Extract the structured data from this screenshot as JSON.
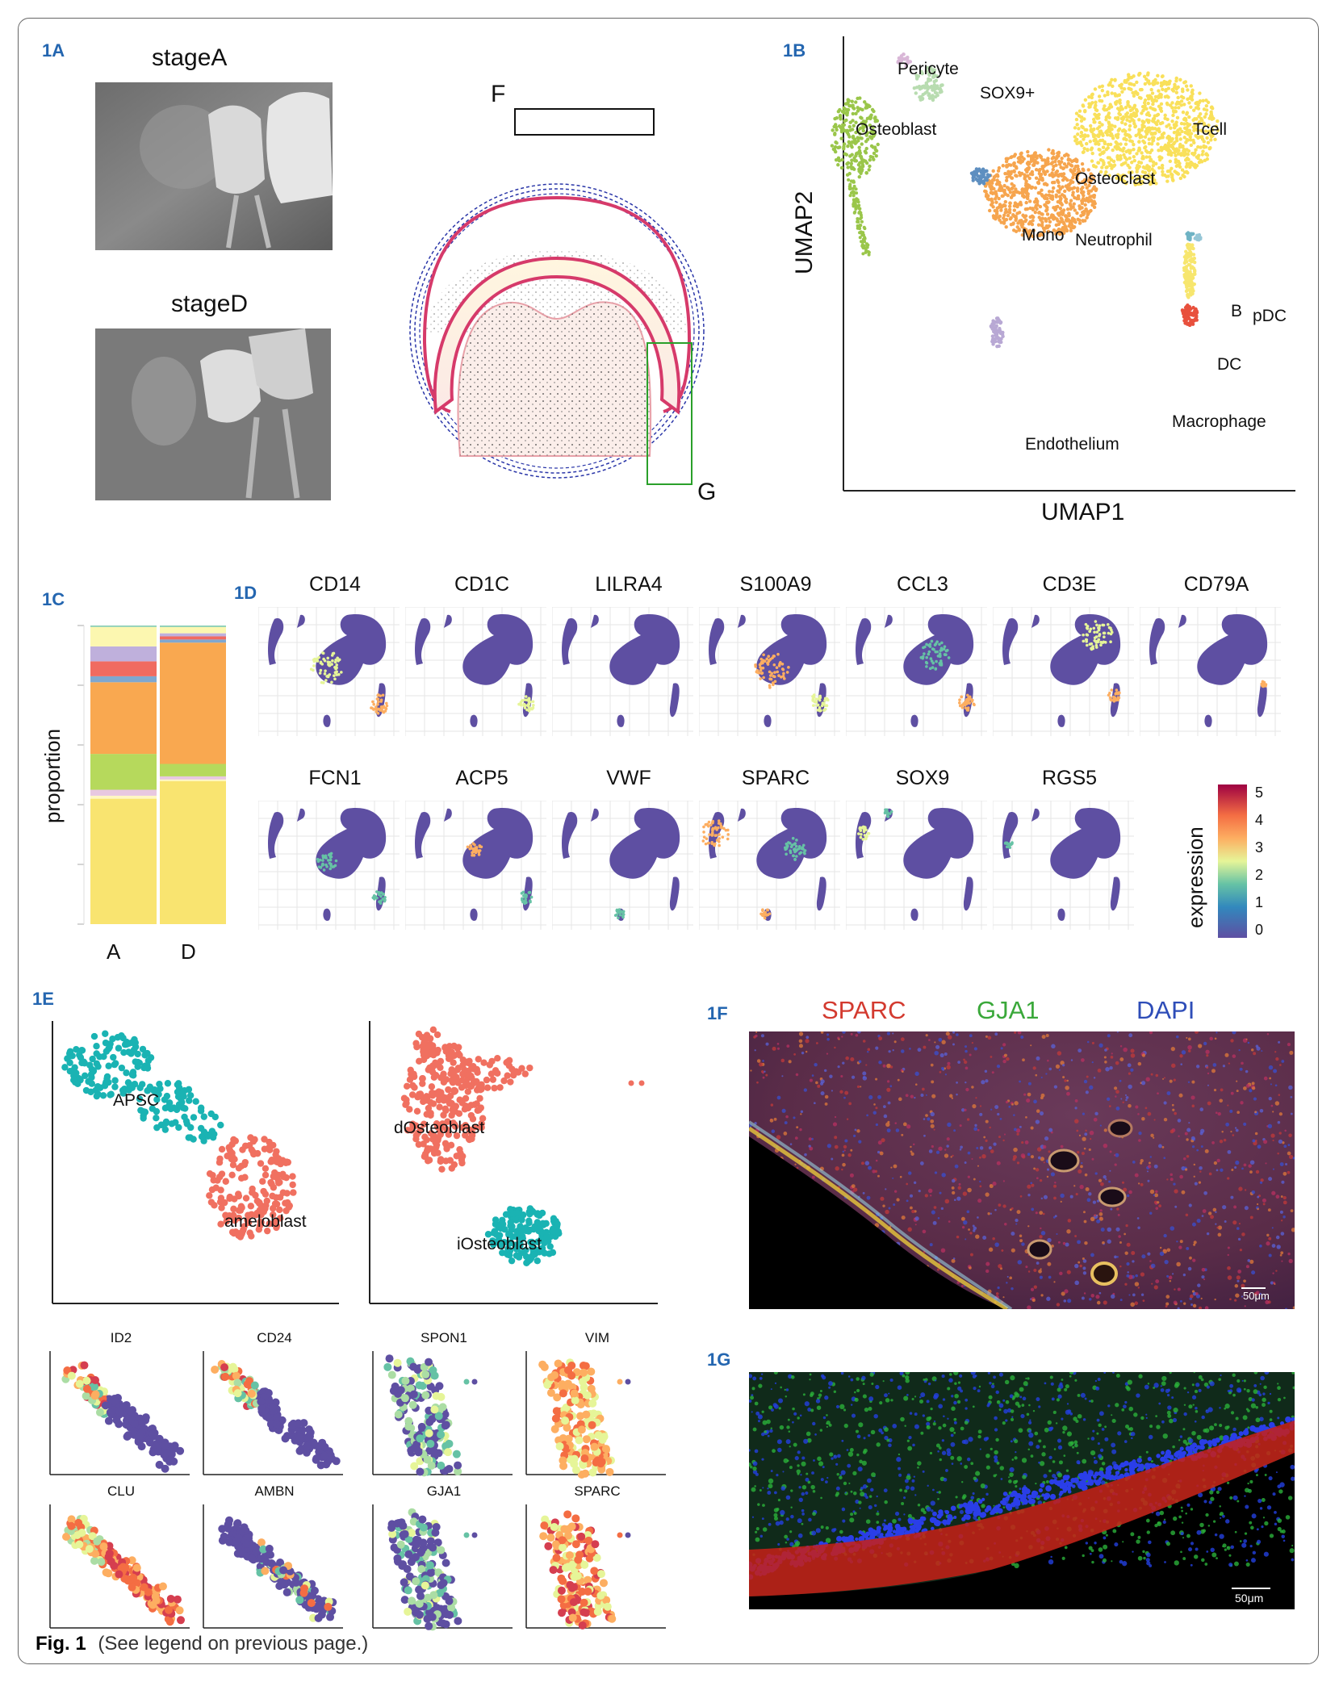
{
  "panels": {
    "a": "1A",
    "b": "1B",
    "c": "1C",
    "d": "1D",
    "e": "1E",
    "f": "1F",
    "g": "1G"
  },
  "panel_a": {
    "stage_a": "stageA",
    "stage_d": "stageD",
    "box_f": "F",
    "box_g": "G"
  },
  "panel_b": {
    "xlabel": "UMAP1",
    "ylabel": "UMAP2",
    "clusters": [
      "Pericyte",
      "SOX9+",
      "Osteoblast",
      "Tcell",
      "Osteoclast",
      "Mono",
      "Neutrophil",
      "B",
      "pDC",
      "DC",
      "Macrophage",
      "Endothelium"
    ],
    "colors": {
      "Tcell": "#f9e05a",
      "Neutrophil": "#f6a54e",
      "Osteoblast": "#9ac64a",
      "SOX9+": "#b8dcb0",
      "Pericyte": "#d9b7d7",
      "Mono": "#5e8fc0",
      "Endothelium": "#b8a8d4",
      "Macrophage": "#e8503d",
      "DC": "#f7e66e",
      "B": "#6fb3c4",
      "pDC": "#95c6d6"
    }
  },
  "chart_data": [
    {
      "type": "bar",
      "ylabel": "proportion",
      "categories": [
        "A",
        "D"
      ],
      "series": [
        {
          "values": [
            0.42,
            0.46
          ]
        },
        {
          "values": [
            0.01,
            0.005
          ]
        },
        {
          "values": [
            0.02,
            0.01
          ]
        },
        {
          "values": [
            0.12,
            0.04
          ]
        },
        {
          "values": [
            0.24,
            0.39
          ]
        },
        {
          "values": [
            0.02,
            0.01
          ]
        },
        {
          "values": [
            0.05,
            0.01
          ]
        },
        {
          "values": [
            0.05,
            0.01
          ]
        },
        {
          "values": [
            0.065,
            0.02
          ]
        },
        {
          "values": [
            0.005,
            0.005
          ]
        }
      ],
      "colors": [
        "#f9e470",
        "#fff7c2",
        "#e8c8e0",
        "#b6d95c",
        "#f9a850",
        "#7fa7cf",
        "#f06b60",
        "#bfb0dc",
        "#fcf7b0",
        "#8fd0b6"
      ]
    },
    {
      "type": "heatmap",
      "genes_row1": [
        "CD14",
        "CD1C",
        "LILRA4",
        "S100A9",
        "CCL3",
        "CD3E",
        "CD79A"
      ],
      "genes_row2": [
        "FCN1",
        "ACP5",
        "VWF",
        "SPARC",
        "SOX9",
        "RGS5"
      ],
      "colorbar_label": "expression",
      "colorbar_ticks": [
        0,
        1,
        2,
        3,
        4,
        5
      ]
    }
  ],
  "panel_e": {
    "umap_left_labels": [
      "APSC",
      "ameloblast"
    ],
    "umap_right_labels": [
      "dOsteoblast",
      "iOsteoblast"
    ],
    "genes_left": [
      "ID2",
      "CD24",
      "CLU",
      "AMBN"
    ],
    "genes_right": [
      "SPON1",
      "VIM",
      "GJA1",
      "SPARC"
    ],
    "colors": {
      "teal": "#1ab3b3",
      "salmon": "#f07060"
    }
  },
  "panel_f": {
    "label_sparc": "SPARC",
    "label_gja1": "GJA1",
    "label_dapi": "DAPI",
    "scale": "50μm",
    "colors": {
      "sparc": "#d9342b",
      "gja1": "#3aa63a",
      "dapi": "#2b4cb5"
    }
  },
  "panel_g": {
    "scale": "50μm"
  },
  "caption": {
    "fig": "Fig. 1",
    "text": "(See legend on previous page.)"
  }
}
